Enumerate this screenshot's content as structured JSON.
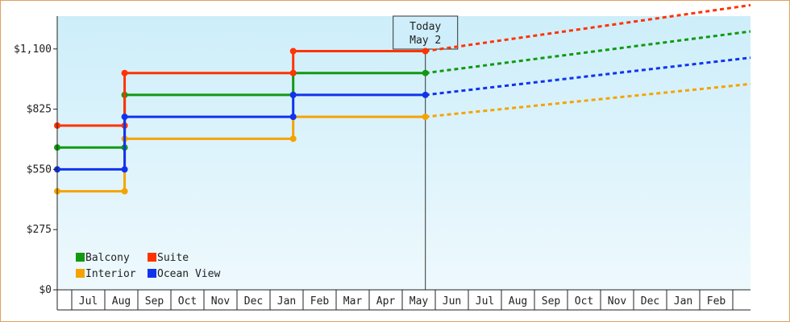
{
  "chart_data": {
    "type": "line",
    "step": true,
    "ylim": [
      0,
      1250
    ],
    "y_ticks": [
      0,
      275,
      550,
      825,
      1100
    ],
    "y_tick_labels": [
      "$0",
      "$275",
      "$550",
      "$825",
      "$1,100"
    ],
    "x_month_labels": [
      "Jul",
      "Aug",
      "Sep",
      "Oct",
      "Nov",
      "Dec",
      "Jan",
      "Feb",
      "Mar",
      "Apr",
      "May",
      "Jun",
      "Jul",
      "Aug",
      "Sep",
      "Oct",
      "Nov",
      "Dec",
      "Jan",
      "Feb"
    ],
    "today": {
      "line1": "Today",
      "line2": "May 2"
    },
    "grid": false,
    "legend_position": "bottom-left",
    "series": [
      {
        "name": "Balcony",
        "color": "#119911",
        "points": [
          [
            0,
            650
          ],
          [
            1.6,
            650
          ],
          [
            1.6,
            890
          ],
          [
            6.7,
            890
          ],
          [
            6.7,
            990
          ],
          [
            10.7,
            990
          ]
        ],
        "projection_end": 1180
      },
      {
        "name": "Suite",
        "color": "#ff3300",
        "points": [
          [
            0,
            750
          ],
          [
            1.6,
            750
          ],
          [
            1.6,
            990
          ],
          [
            6.7,
            990
          ],
          [
            6.7,
            1090
          ],
          [
            10.7,
            1090
          ]
        ],
        "projection_end": 1300
      },
      {
        "name": "Interior",
        "color": "#f5a300",
        "points": [
          [
            0,
            450
          ],
          [
            1.6,
            450
          ],
          [
            1.6,
            690
          ],
          [
            6.7,
            690
          ],
          [
            6.7,
            790
          ],
          [
            10.7,
            790
          ]
        ],
        "projection_end": 940
      },
      {
        "name": "Ocean View",
        "color": "#1133ee",
        "points": [
          [
            0,
            550
          ],
          [
            1.6,
            550
          ],
          [
            1.6,
            790
          ],
          [
            6.7,
            790
          ],
          [
            6.7,
            890
          ],
          [
            10.7,
            890
          ]
        ],
        "projection_end": 1060
      }
    ]
  }
}
